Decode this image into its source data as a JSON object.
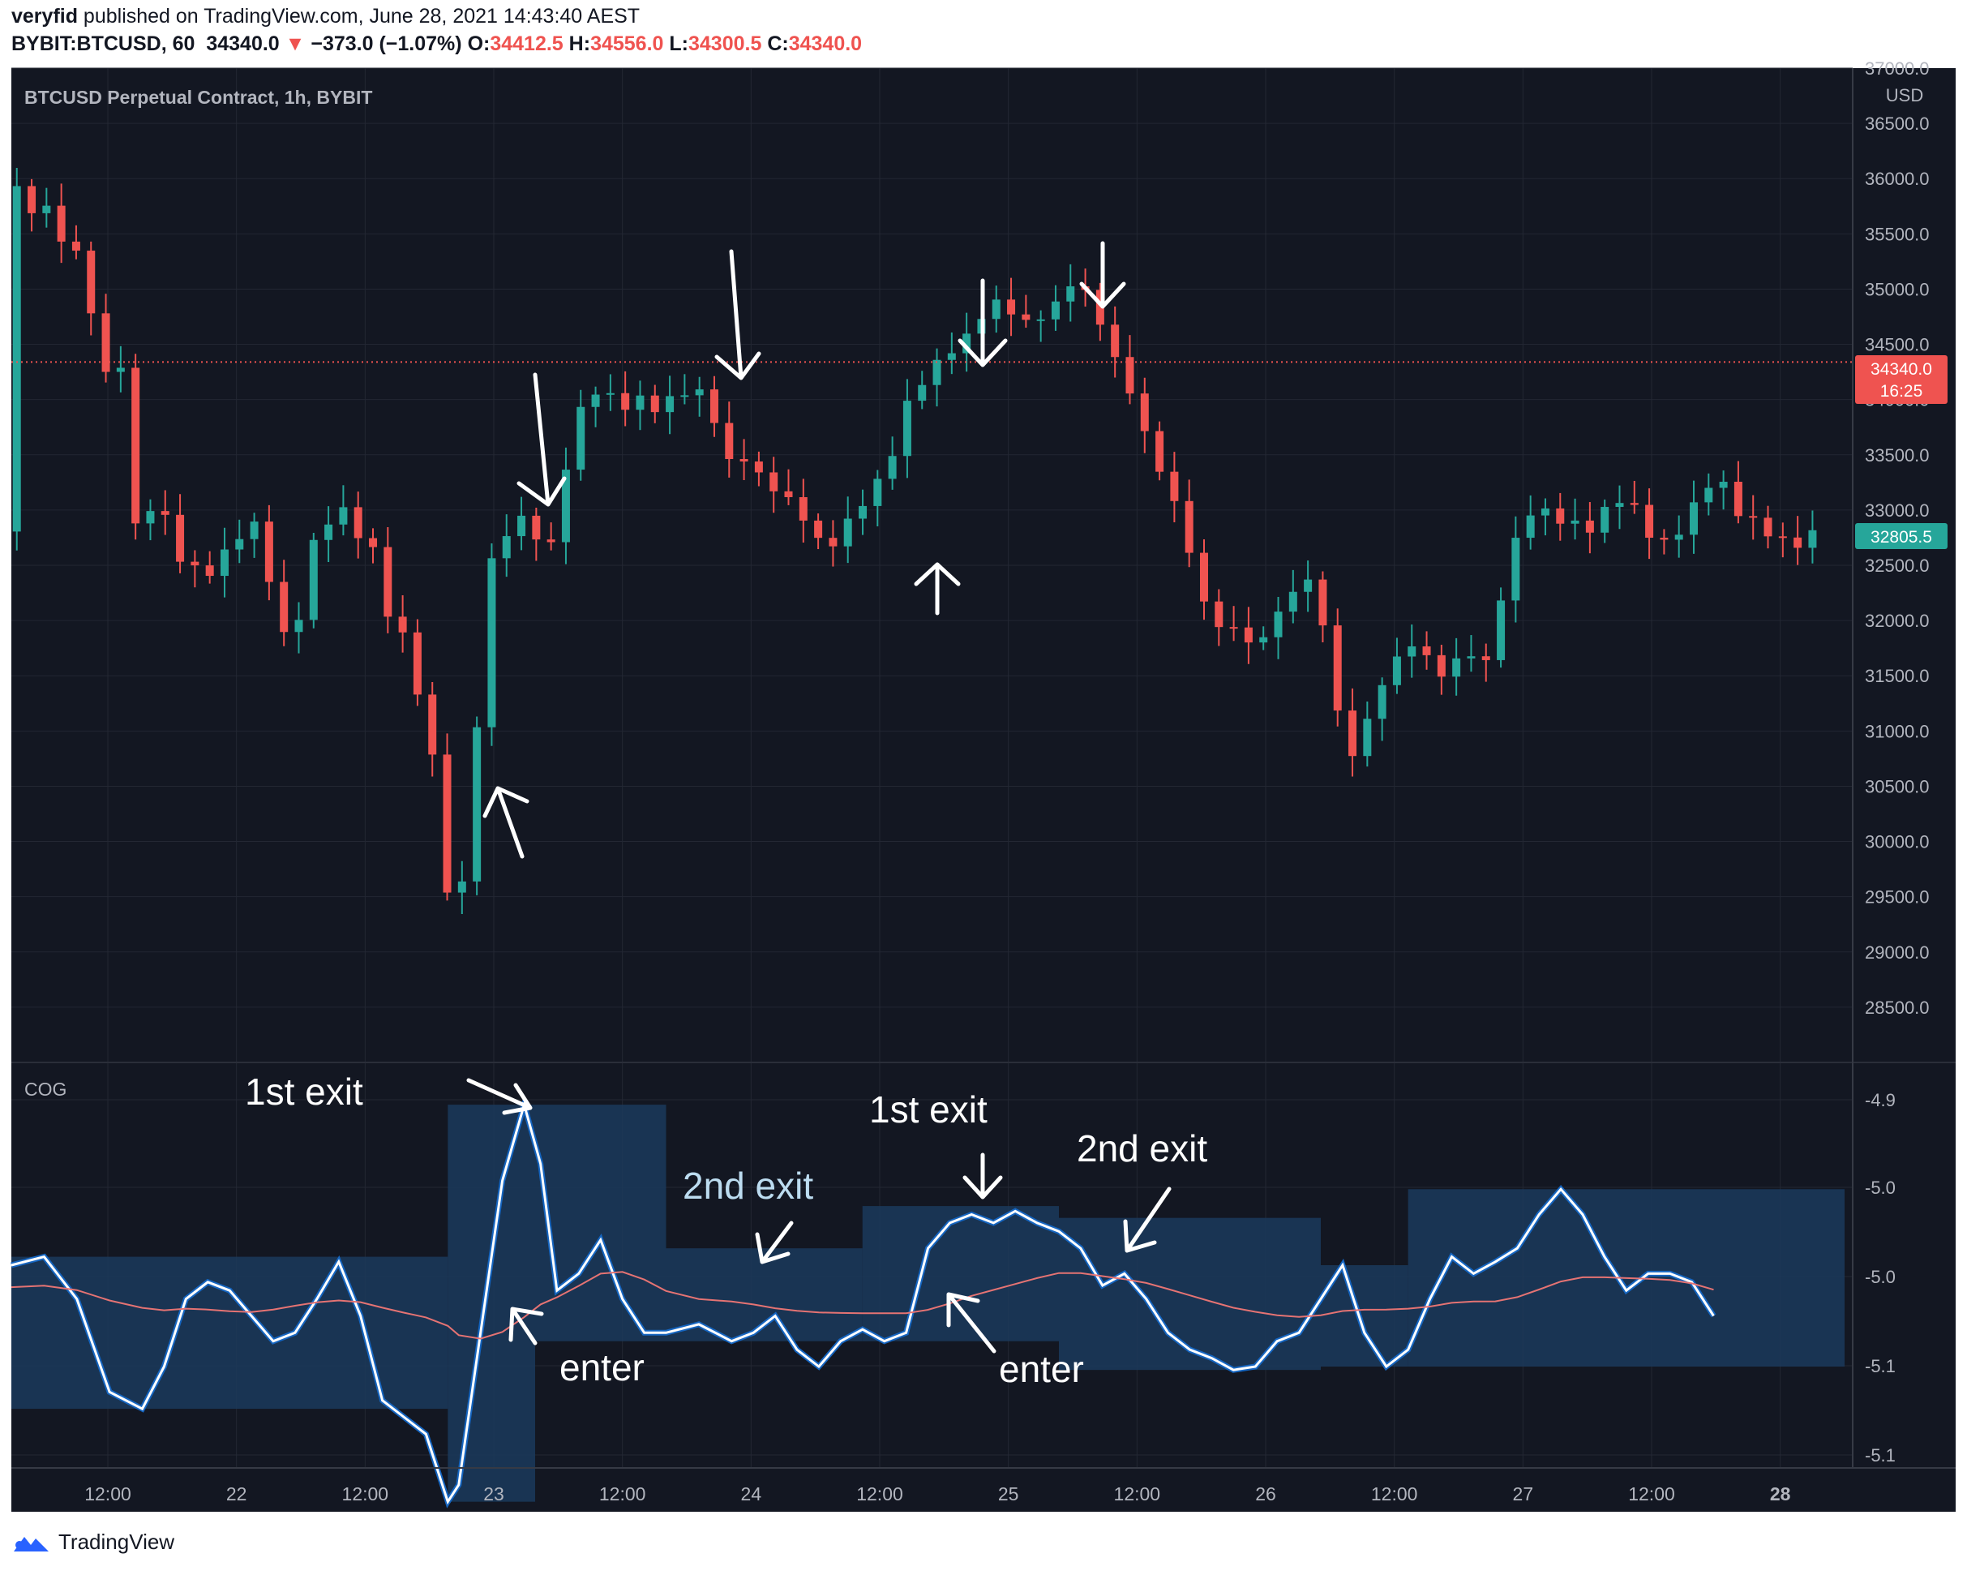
{
  "header": {
    "publisher": "veryfid",
    "published_text": " published on TradingView.com, June 28, 2021 14:43:40 AEST",
    "symbol_line": "BYBIT:BTCUSD, 60",
    "last": "34340.0",
    "change_arrow": "▼",
    "change": "−373.0 (−1.07%)",
    "o_label": "O:",
    "o_value": "34412.5",
    "h_label": "H:",
    "h_value": "34556.0",
    "l_label": "L:",
    "l_value": "34300.5",
    "c_label": "C:",
    "c_value": "34340.0"
  },
  "price_pane": {
    "title": "BTCUSD Perpetual Contract, 1h, BYBIT",
    "currency": "USD",
    "last_price_tag": "34340.0",
    "countdown_tag": "16:25",
    "side_price_tag": "32805.5"
  },
  "indicator_pane": {
    "title": "COG"
  },
  "annotations": {
    "first_exit_1": "1st exit",
    "enter_1": "enter",
    "second_exit_1": "2nd exit",
    "first_exit_2": "1st exit",
    "second_exit_2": "2nd exit",
    "enter_2": "enter"
  },
  "footer": {
    "brand": "TradingView"
  },
  "colors": {
    "background": "#131722",
    "grid": "#232733",
    "up": "#26a69a",
    "down": "#ef5350",
    "cog_line": "#1565c0",
    "cog_band": "#1b3a5c",
    "signal": "#e57373"
  },
  "chart_data": [
    {
      "type": "candlestick",
      "title": "BTCUSD Perpetual Contract, 1h, BYBIT",
      "ylim": [
        28000,
        37000
      ],
      "y_ticks": [
        "37000.0",
        "36500.0",
        "36000.0",
        "35500.0",
        "35000.0",
        "34500.0",
        "34000.0",
        "33500.0",
        "33000.0",
        "32500.0",
        "32000.0",
        "31500.0",
        "31000.0",
        "30500.0",
        "30000.0",
        "29500.0",
        "29000.0",
        "28500.0"
      ],
      "x_ticks": [
        "12:00",
        "22",
        "12:00",
        "23",
        "12:00",
        "24",
        "12:00",
        "25",
        "12:00",
        "26",
        "12:00",
        "27",
        "12:00",
        "28"
      ],
      "x_range_hours": [
        0,
        168
      ],
      "close_path": [
        [
          0.5,
          35850
        ],
        [
          3,
          35700
        ],
        [
          5.5,
          35400
        ],
        [
          7.5,
          34800
        ],
        [
          8.7,
          34150
        ],
        [
          10,
          34400
        ],
        [
          11,
          32700
        ],
        [
          12.5,
          33100
        ],
        [
          14,
          32900
        ],
        [
          15.5,
          32600
        ],
        [
          17,
          32400
        ],
        [
          18.5,
          32500
        ],
        [
          20,
          32600
        ],
        [
          21.5,
          32950
        ],
        [
          23,
          32700
        ],
        [
          24,
          32250
        ],
        [
          25.5,
          31600
        ],
        [
          27,
          32450
        ],
        [
          28.5,
          32900
        ],
        [
          30,
          33000
        ],
        [
          31.5,
          32850
        ],
        [
          33,
          32650
        ],
        [
          34.5,
          32100
        ],
        [
          36,
          31800
        ],
        [
          37.5,
          31300
        ],
        [
          39,
          30500
        ],
        [
          40.2,
          29350
        ],
        [
          40.9,
          29050
        ],
        [
          42,
          30500
        ],
        [
          43,
          31400
        ],
        [
          44,
          32500
        ],
        [
          45.5,
          32850
        ],
        [
          47,
          32900
        ],
        [
          48.5,
          32750
        ],
        [
          50,
          32600
        ],
        [
          51,
          33600
        ],
        [
          52,
          33850
        ],
        [
          53.5,
          34100
        ],
        [
          55,
          34000
        ],
        [
          56.5,
          33950
        ],
        [
          58,
          34000
        ],
        [
          59.5,
          33900
        ],
        [
          61,
          34050
        ],
        [
          62,
          34100
        ],
        [
          64,
          34000
        ],
        [
          65.5,
          33400
        ],
        [
          67,
          33500
        ],
        [
          68.5,
          33300
        ],
        [
          70,
          33200
        ],
        [
          71.5,
          33050
        ],
        [
          73,
          32900
        ],
        [
          74.5,
          32600
        ],
        [
          76,
          32800
        ],
        [
          77.5,
          33000
        ],
        [
          79,
          33200
        ],
        [
          80.5,
          33400
        ],
        [
          81.5,
          33900
        ],
        [
          82.5,
          34000
        ],
        [
          84,
          34250
        ],
        [
          85.5,
          34400
        ],
        [
          87,
          34500
        ],
        [
          88.5,
          34700
        ],
        [
          90,
          34900
        ],
        [
          91.5,
          34800
        ],
        [
          93,
          34700
        ],
        [
          94.5,
          34750
        ],
        [
          96,
          34900
        ],
        [
          97.5,
          35100
        ],
        [
          99,
          34900
        ],
        [
          100.5,
          34500
        ],
        [
          102,
          34200
        ],
        [
          103.5,
          33800
        ],
        [
          105,
          33400
        ],
        [
          106.5,
          33100
        ],
        [
          108,
          32600
        ],
        [
          109.5,
          32100
        ],
        [
          111,
          31900
        ],
        [
          112.5,
          31950
        ],
        [
          114,
          31700
        ],
        [
          115.5,
          32000
        ],
        [
          117,
          32200
        ],
        [
          118.5,
          32400
        ],
        [
          119.5,
          32300
        ],
        [
          120.5,
          31800
        ],
        [
          121.5,
          31200
        ],
        [
          122.5,
          30700
        ],
        [
          123.5,
          30900
        ],
        [
          125,
          31300
        ],
        [
          126.5,
          31600
        ],
        [
          128,
          31800
        ],
        [
          129.5,
          31700
        ],
        [
          131,
          31500
        ],
        [
          132.5,
          31650
        ],
        [
          134,
          31700
        ],
        [
          135.5,
          31600
        ],
        [
          137,
          32500
        ],
        [
          138.5,
          32900
        ],
        [
          140,
          33050
        ],
        [
          141.5,
          32900
        ],
        [
          143,
          32900
        ],
        [
          144.5,
          32800
        ],
        [
          146,
          33000
        ],
        [
          147.5,
          33100
        ],
        [
          149,
          33000
        ],
        [
          150.5,
          32700
        ],
        [
          152,
          32700
        ],
        [
          153.5,
          32900
        ],
        [
          155,
          33200
        ],
        [
          156.5,
          33300
        ],
        [
          158,
          33000
        ],
        [
          159.5,
          32900
        ],
        [
          161,
          32800
        ],
        [
          162.5,
          32700
        ],
        [
          164,
          32700
        ],
        [
          165.5,
          32805.5
        ]
      ]
    },
    {
      "type": "line",
      "title": "COG",
      "ylim": [
        -5.12,
        -4.88
      ],
      "y_ticks": [
        "-4.9",
        "-5.0",
        "-5.0",
        "-5.1",
        "-5.1"
      ],
      "series": [],
      "cog_path": [
        [
          0,
          -5.0
        ],
        [
          3,
          -4.995
        ],
        [
          6,
          -5.02
        ],
        [
          9,
          -5.075
        ],
        [
          12,
          -5.085
        ],
        [
          14,
          -5.06
        ],
        [
          16,
          -5.02
        ],
        [
          18,
          -5.01
        ],
        [
          20,
          -5.015
        ],
        [
          22,
          -5.03
        ],
        [
          24,
          -5.045
        ],
        [
          26,
          -5.04
        ],
        [
          28,
          -5.02
        ],
        [
          30,
          -4.998
        ],
        [
          32,
          -5.03
        ],
        [
          34,
          -5.08
        ],
        [
          36,
          -5.09
        ],
        [
          38,
          -5.1
        ],
        [
          40,
          -5.14
        ],
        [
          41,
          -5.13
        ],
        [
          43,
          -5.04
        ],
        [
          45,
          -4.95
        ],
        [
          47,
          -4.905
        ],
        [
          48.5,
          -4.94
        ],
        [
          50,
          -5.015
        ],
        [
          52,
          -5.005
        ],
        [
          54,
          -4.985
        ],
        [
          56,
          -5.02
        ],
        [
          58,
          -5.04
        ],
        [
          60,
          -5.04
        ],
        [
          63,
          -5.035
        ],
        [
          66,
          -5.045
        ],
        [
          68,
          -5.04
        ],
        [
          70,
          -5.03
        ],
        [
          72,
          -5.05
        ],
        [
          74,
          -5.06
        ],
        [
          76,
          -5.045
        ],
        [
          78,
          -5.038
        ],
        [
          80,
          -5.045
        ],
        [
          82,
          -5.04
        ],
        [
          84,
          -4.99
        ],
        [
          86,
          -4.975
        ],
        [
          88,
          -4.97
        ],
        [
          90,
          -4.975
        ],
        [
          92,
          -4.968
        ],
        [
          94,
          -4.975
        ],
        [
          96,
          -4.98
        ],
        [
          98,
          -4.99
        ],
        [
          100,
          -5.012
        ],
        [
          102,
          -5.005
        ],
        [
          104,
          -5.02
        ],
        [
          106,
          -5.04
        ],
        [
          108,
          -5.05
        ],
        [
          110,
          -5.055
        ],
        [
          112,
          -5.062
        ],
        [
          114,
          -5.06
        ],
        [
          116,
          -5.045
        ],
        [
          118,
          -5.04
        ],
        [
          120,
          -5.02
        ],
        [
          122,
          -5.0
        ],
        [
          124,
          -5.04
        ],
        [
          126,
          -5.06
        ],
        [
          128,
          -5.05
        ],
        [
          130,
          -5.02
        ],
        [
          132,
          -4.995
        ],
        [
          134,
          -5.005
        ],
        [
          136,
          -4.998
        ],
        [
          138,
          -4.99
        ],
        [
          140,
          -4.97
        ],
        [
          142,
          -4.955
        ],
        [
          144,
          -4.97
        ],
        [
          146,
          -4.995
        ],
        [
          148,
          -5.015
        ],
        [
          150,
          -5.005
        ],
        [
          152,
          -5.005
        ],
        [
          154,
          -5.01
        ],
        [
          156,
          -5.03
        ]
      ]
    }
  ]
}
